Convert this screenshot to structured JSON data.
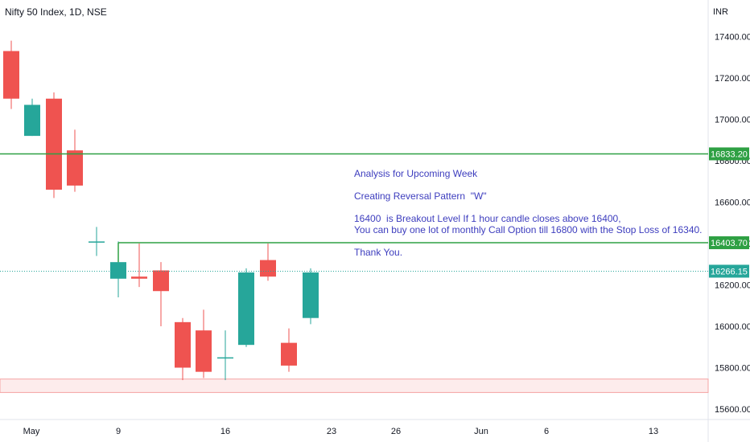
{
  "chart_title": "Nifty 50 Index, 1D, NSE",
  "currency": "INR",
  "colors": {
    "up": "#26a69a",
    "down": "#ef5350",
    "level_line": "#2ea043",
    "support_zone": "#f5a3a3",
    "annotation": "#3d3dbe",
    "last_price": "#26a69a"
  },
  "annotations": [
    "Analysis for Upcoming Week",
    "Creating Reversal Pattern  \"W\"",
    "16400  is Breakout Level If 1 hour candle closes above 16400,",
    "You can buy one lot of monthly Call Option till 16800 with the Stop Loss of 16340.",
    "Thank You."
  ],
  "chart_data": {
    "type": "candlestick",
    "title": "Nifty 50 Index, 1D, NSE",
    "y_unit": "INR",
    "ylim": [
      15560,
      17500
    ],
    "y_ticks": [
      "17400.00",
      "17200.00",
      "17000.00",
      "16800.00",
      "16600.00",
      "16400.00",
      "16200.00",
      "16000.00",
      "15800.00",
      "15600.00"
    ],
    "x_ticks": [
      "May",
      "9",
      "16",
      "23",
      "26",
      "Jun",
      "6",
      "13"
    ],
    "candles": [
      {
        "open": 17330,
        "high": 17380,
        "low": 17050,
        "close": 17100
      },
      {
        "open": 16920,
        "high": 17100,
        "low": 16920,
        "close": 17070
      },
      {
        "open": 17100,
        "high": 17130,
        "low": 16620,
        "close": 16660
      },
      {
        "open": 16850,
        "high": 16950,
        "low": 16650,
        "close": 16680
      },
      {
        "open": 16410,
        "high": 16480,
        "low": 16340,
        "close": 16410
      },
      {
        "open": 16230,
        "high": 16410,
        "low": 16140,
        "close": 16310
      },
      {
        "open": 16240,
        "high": 16400,
        "low": 16190,
        "close": 16230
      },
      {
        "open": 16270,
        "high": 16310,
        "low": 16000,
        "close": 16170
      },
      {
        "open": 16020,
        "high": 16040,
        "low": 15740,
        "close": 15800
      },
      {
        "open": 15980,
        "high": 16080,
        "low": 15750,
        "close": 15780
      },
      {
        "open": 15850,
        "high": 15980,
        "low": 15740,
        "close": 15850
      },
      {
        "open": 15910,
        "high": 16280,
        "low": 15900,
        "close": 16260
      },
      {
        "open": 16320,
        "high": 16400,
        "low": 16220,
        "close": 16240
      },
      {
        "open": 15920,
        "high": 15990,
        "low": 15780,
        "close": 15810
      },
      {
        "open": 16040,
        "high": 16280,
        "low": 16010,
        "close": 16260
      }
    ],
    "levels": [
      {
        "label": "16833.20",
        "value": 16833.2,
        "kind": "resistance"
      },
      {
        "label": "16403.70",
        "value": 16403.7,
        "kind": "breakout"
      }
    ],
    "last_price": {
      "label": "16266.15",
      "value": 16266.15
    },
    "support_zone": [
      15680,
      15745
    ]
  }
}
